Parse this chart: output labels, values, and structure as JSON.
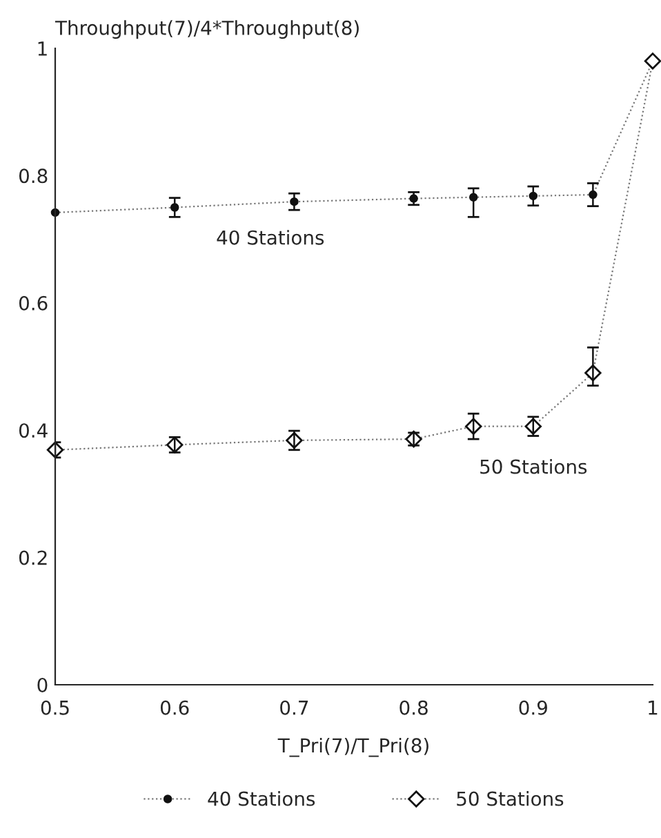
{
  "chart_data": {
    "type": "line",
    "ylabel": "Throughput(7)/4*Throughput(8)",
    "xlabel": "T_Pri(7)/T_Pri(8)",
    "x": [
      0.5,
      0.6,
      0.7,
      0.8,
      0.85,
      0.9,
      0.95,
      1.0
    ],
    "series": [
      {
        "name": "40 Stations",
        "color": "#111111",
        "marker": "circle",
        "values": [
          0.742,
          0.75,
          0.759,
          0.764,
          0.766,
          0.768,
          0.77,
          0.98
        ],
        "errors": [
          null,
          0.015,
          0.013,
          0.01,
          [
            0.735,
            0.78
          ],
          0.015,
          0.018,
          null
        ]
      },
      {
        "name": "50 Stations",
        "color": "#111111",
        "marker": "diamond",
        "values": [
          0.369,
          0.377,
          0.384,
          0.386,
          0.406,
          0.406,
          0.49,
          0.98
        ],
        "errors": [
          0.012,
          0.012,
          0.015,
          0.01,
          0.02,
          0.015,
          [
            0.47,
            0.53
          ],
          null
        ]
      }
    ],
    "annotations": [
      "40 Stations",
      "50 Stations"
    ],
    "xlim": [
      0.5,
      1.0
    ],
    "ylim": [
      0,
      1.0
    ],
    "xticks": [
      0.5,
      0.6,
      0.7,
      0.8,
      0.9,
      1
    ],
    "yticks": [
      0,
      0.2,
      0.4,
      0.6,
      0.8,
      1
    ],
    "line_style": "dotted",
    "grid": false,
    "legend": "bottom"
  }
}
